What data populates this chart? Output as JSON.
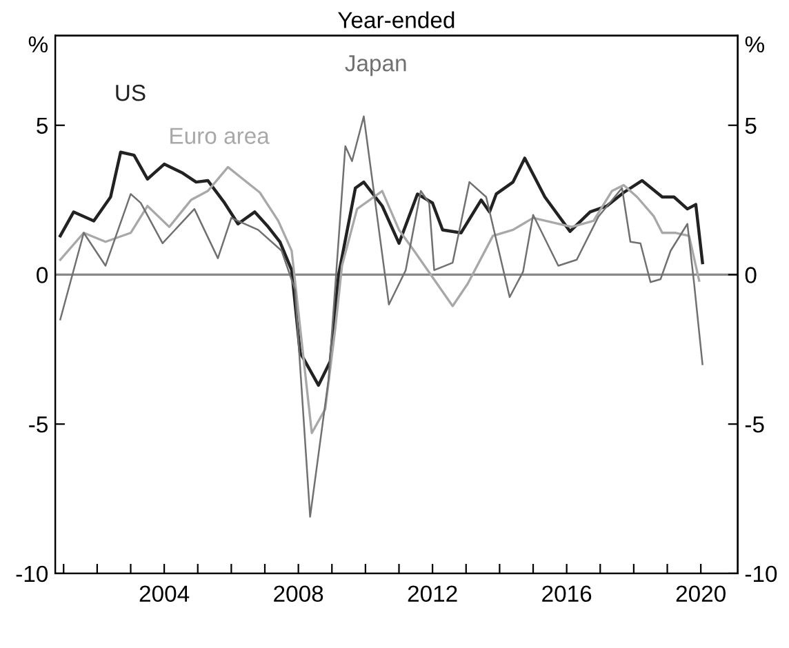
{
  "chart_data": {
    "type": "line",
    "title": "Year-ended",
    "ylabel": "%",
    "y2label": "%",
    "xlim": [
      2000.75,
      2021.1
    ],
    "xticks": [
      {
        "value": 2001,
        "label": null
      },
      {
        "value": 2002,
        "label": null
      },
      {
        "value": 2003,
        "label": null
      },
      2004,
      {
        "value": 2005,
        "label": null
      },
      {
        "value": 2006,
        "label": null
      },
      {
        "value": 2007,
        "label": null
      },
      2008,
      {
        "value": 2009,
        "label": null
      },
      {
        "value": 2010,
        "label": null
      },
      {
        "value": 2011,
        "label": null
      },
      2012,
      {
        "value": 2013,
        "label": null
      },
      {
        "value": 2014,
        "label": null
      },
      {
        "value": 2015,
        "label": null
      },
      2016,
      {
        "value": 2017,
        "label": null
      },
      {
        "value": 2018,
        "label": null
      },
      {
        "value": 2019,
        "label": null
      },
      2020
    ],
    "ylim": [
      -10,
      8
    ],
    "yticks": [
      -10,
      -5,
      0,
      5
    ],
    "y2lim": [
      -10,
      8
    ],
    "y2ticks": [
      -10,
      -5,
      0,
      5
    ],
    "grid": false,
    "legend": false,
    "marker": "none",
    "line_style": "solid",
    "ref_lines": [
      {
        "axis": "y",
        "value": 0,
        "color": "#888888"
      }
    ],
    "series": [
      {
        "name": "US",
        "color": "#222222",
        "x": [
          2000.9,
          2001.3,
          2001.9,
          2002.4,
          2002.7,
          2003.1,
          2003.5,
          2004.0,
          2004.55,
          2004.95,
          2005.3,
          2005.8,
          2006.2,
          2006.7,
          2007.1,
          2007.45,
          2007.8,
          2008.05,
          2008.6,
          2008.95,
          2009.2,
          2009.7,
          2009.95,
          2010.5,
          2011.0,
          2011.55,
          2012.0,
          2012.3,
          2012.85,
          2013.45,
          2013.7,
          2013.9,
          2014.4,
          2014.75,
          2015.35,
          2016.1,
          2016.7,
          2017.2,
          2017.7,
          2018.25,
          2018.85,
          2019.2,
          2019.6,
          2019.85,
          2020.05
        ],
        "values": [
          1.3,
          2.1,
          1.8,
          2.6,
          4.1,
          4.0,
          3.2,
          3.7,
          3.4,
          3.1,
          3.15,
          2.4,
          1.7,
          2.1,
          1.6,
          1.1,
          0.15,
          -2.6,
          -3.7,
          -2.9,
          0,
          2.9,
          3.1,
          2.3,
          1.05,
          2.7,
          2.4,
          1.5,
          1.4,
          2.5,
          2.1,
          2.7,
          3.1,
          3.9,
          2.6,
          1.45,
          2.1,
          2.3,
          2.75,
          3.15,
          2.6,
          2.6,
          2.2,
          2.35,
          0.4
        ]
      },
      {
        "name": "Euro area",
        "color": "#a8a8a8",
        "x": [
          2000.9,
          2001.6,
          2002.25,
          2003.0,
          2003.5,
          2004.15,
          2004.8,
          2005.3,
          2005.9,
          2006.85,
          2007.4,
          2007.8,
          2008.4,
          2008.8,
          2009.1,
          2009.3,
          2009.75,
          2010.5,
          2011.0,
          2011.45,
          2012.6,
          2013.05,
          2013.8,
          2014.4,
          2015.0,
          2016.15,
          2016.8,
          2017.35,
          2017.7,
          2018.1,
          2018.6,
          2018.85,
          2019.25,
          2019.65,
          2019.95
        ],
        "values": [
          0.5,
          1.4,
          1.1,
          1.4,
          2.3,
          1.6,
          2.5,
          2.8,
          3.6,
          2.75,
          1.8,
          0.8,
          -5.3,
          -4.5,
          -1.8,
          0.3,
          2.2,
          2.8,
          1.5,
          0.8,
          -1.05,
          -0.3,
          1.3,
          1.5,
          1.9,
          1.6,
          1.8,
          2.8,
          3.0,
          2.6,
          1.95,
          1.4,
          1.4,
          1.3,
          -0.2
        ]
      },
      {
        "name": "Japan",
        "color": "#707070",
        "x": [
          2000.9,
          2001.6,
          2002.25,
          2003.0,
          2003.3,
          2003.95,
          2004.9,
          2005.6,
          2006.0,
          2006.8,
          2007.5,
          2007.9,
          2008.35,
          2008.9,
          2009.4,
          2009.6,
          2009.95,
          2010.7,
          2011.2,
          2011.65,
          2011.9,
          2012.05,
          2012.6,
          2013.1,
          2013.6,
          2014.3,
          2014.7,
          2015.0,
          2015.75,
          2016.3,
          2016.95,
          2017.65,
          2017.9,
          2018.2,
          2018.5,
          2018.8,
          2019.1,
          2019.6,
          2019.8,
          2020.05
        ],
        "values": [
          -1.5,
          1.4,
          0.3,
          2.7,
          2.4,
          1.05,
          2.2,
          0.55,
          1.9,
          1.5,
          0.8,
          -0.5,
          -8.1,
          -3.5,
          4.3,
          3.8,
          5.3,
          -1.0,
          0.15,
          2.8,
          2.4,
          0.15,
          0.4,
          3.1,
          2.6,
          -0.75,
          0.1,
          2.0,
          0.3,
          0.5,
          1.95,
          2.9,
          1.1,
          1.05,
          -0.25,
          -0.15,
          0.8,
          1.7,
          -0.3,
          -3.0
        ]
      }
    ]
  }
}
